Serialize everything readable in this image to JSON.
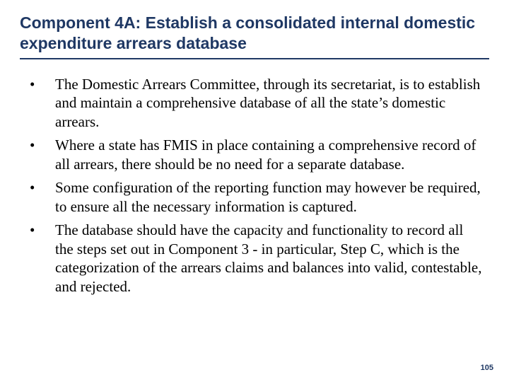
{
  "title": "Component 4A: Establish a consolidated internal domestic expenditure arrears database",
  "bullets": [
    "The Domestic Arrears Committee, through its secretariat, is to establish and maintain a comprehensive database of all the state’s domestic arrears.",
    "Where a state has FMIS in place containing a comprehensive record of all arrears, there should be no need for a separate database.",
    "Some configuration of the reporting function may however be required, to ensure all the necessary information is captured.",
    "The database should have the capacity and functionality to record all the steps set out in Component 3 - in particular, Step C, which is the categorization of the arrears claims and balances into valid, contestable, and rejected."
  ],
  "page_number": "105",
  "colors": {
    "heading": "#1f3864",
    "body_text": "#000000",
    "background": "#ffffff"
  },
  "typography": {
    "heading_font": "Verdana",
    "heading_size_pt": 17,
    "heading_weight": "bold",
    "body_font": "Times New Roman",
    "body_size_pt": 16,
    "pagenum_size_pt": 8
  }
}
